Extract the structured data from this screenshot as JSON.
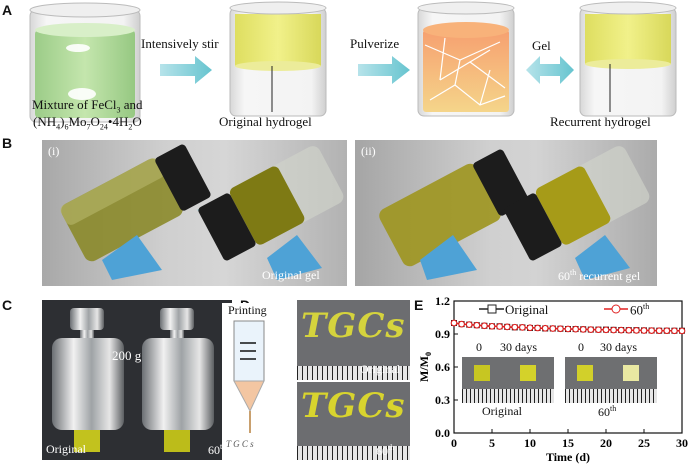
{
  "panelA": {
    "label": "A",
    "step1": "Intensively stir",
    "step2": "Pulverize",
    "step3": "Gel",
    "beaker1_l1": "Mixture of FeCl",
    "beaker1_l1_sub": "3",
    "beaker1_l1_end": " and",
    "beaker1_l2a": "(NH",
    "beaker1_l2b": "4",
    "beaker1_l2c": ")",
    "beaker1_l2d": "6",
    "beaker1_l2e": "Mo",
    "beaker1_l2f": "7",
    "beaker1_l2g": "O",
    "beaker1_l2h": "24",
    "beaker1_l2i": "•4H",
    "beaker1_l2j": "2",
    "beaker1_l2k": "O",
    "beaker2": "Original hydrogel",
    "beaker4": "Recurrent hydrogel"
  },
  "panelB": {
    "label": "B",
    "i": "(i)",
    "ii": "(ii)",
    "cap1": "Original gel",
    "cap2a": "60",
    "cap2sup": "th",
    "cap2b": " recurrent gel"
  },
  "panelC": {
    "label": "C",
    "weight": "200 g",
    "left": "Original",
    "right": "60",
    "right_sup": "th"
  },
  "panelD": {
    "label": "D",
    "printing": "Printing",
    "word": "TGCs",
    "tip_text": "T G C s",
    "cap1": "Original",
    "cap2": "60",
    "cap2_sup": "th"
  },
  "panelE": {
    "label": "E",
    "legend_original": "Original",
    "legend_60a": "60",
    "legend_60sup": "th",
    "ylabel": "M/M",
    "ylabel_sub": "0",
    "xlabel": "Time (d)",
    "inset_l_0": "0",
    "inset_l_30": "30 days",
    "inset_l_cap": "Original",
    "inset_r_0": "0",
    "inset_r_30": "30 days",
    "inset_r_cap": "60",
    "inset_r_cap_sup": "th"
  },
  "chart_data": {
    "type": "line",
    "x": [
      0,
      1,
      2,
      3,
      4,
      5,
      6,
      7,
      8,
      9,
      10,
      11,
      12,
      13,
      14,
      15,
      16,
      17,
      18,
      19,
      20,
      21,
      22,
      23,
      24,
      25,
      26,
      27,
      28,
      29,
      30
    ],
    "series": [
      {
        "name": "Original",
        "color": "#222222",
        "marker": "square",
        "values": [
          1.0,
          0.99,
          0.985,
          0.98,
          0.975,
          0.97,
          0.97,
          0.965,
          0.96,
          0.96,
          0.955,
          0.955,
          0.95,
          0.95,
          0.948,
          0.945,
          0.945,
          0.943,
          0.94,
          0.94,
          0.94,
          0.938,
          0.936,
          0.935,
          0.935,
          0.933,
          0.932,
          0.93,
          0.93,
          0.93,
          0.93
        ]
      },
      {
        "name": "60th",
        "color": "#e02020",
        "marker": "circle",
        "values": [
          1.0,
          0.99,
          0.985,
          0.98,
          0.975,
          0.97,
          0.968,
          0.965,
          0.962,
          0.96,
          0.957,
          0.955,
          0.952,
          0.95,
          0.948,
          0.946,
          0.944,
          0.942,
          0.94,
          0.939,
          0.938,
          0.936,
          0.935,
          0.934,
          0.933,
          0.932,
          0.931,
          0.93,
          0.93,
          0.929,
          0.928
        ]
      }
    ],
    "xlabel": "Time (d)",
    "ylabel": "M/M0",
    "xlim": [
      0,
      30
    ],
    "ylim": [
      0.0,
      1.2
    ],
    "xticks": [
      0,
      5,
      10,
      15,
      20,
      25,
      30
    ],
    "yticks": [
      "0.0",
      "0.3",
      "0.6",
      "0.9",
      "1.2"
    ],
    "legend": "top"
  }
}
